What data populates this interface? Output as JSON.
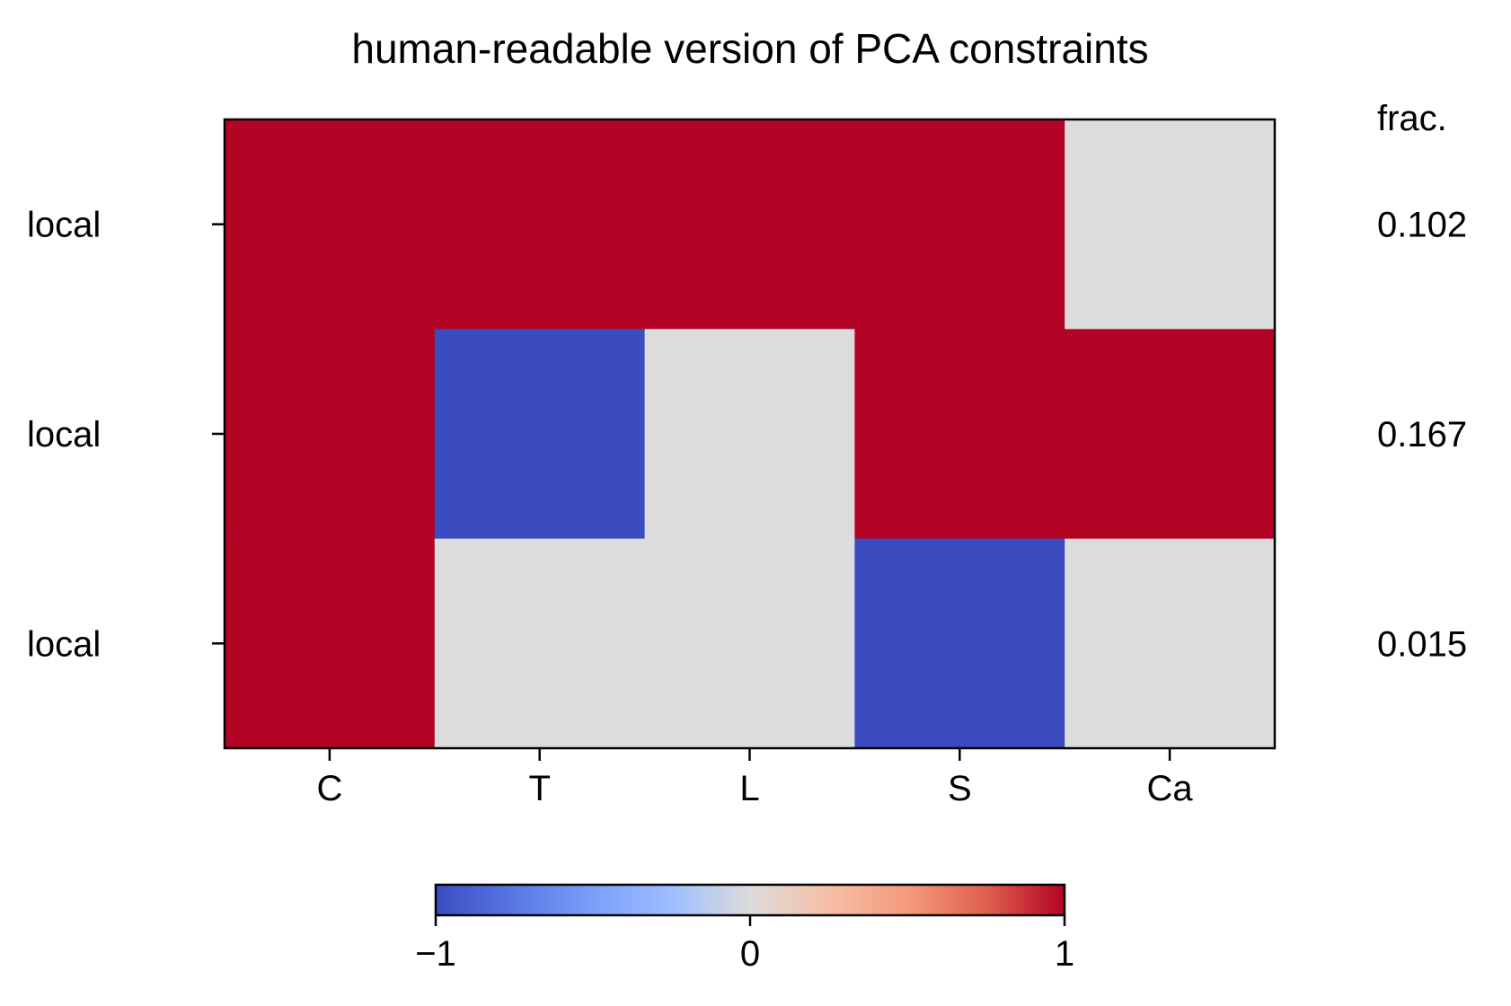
{
  "chart_data": {
    "type": "heatmap",
    "title": "human-readable version of PCA constraints",
    "columns": [
      "C",
      "T",
      "L",
      "S",
      "Ca"
    ],
    "rows": [
      "local",
      "local",
      "local"
    ],
    "values": [
      [
        1,
        1,
        1,
        1,
        0
      ],
      [
        1,
        -1,
        0,
        1,
        1
      ],
      [
        1,
        0,
        0,
        -1,
        0
      ]
    ],
    "right_header": "frac.",
    "right_values": [
      "0.102",
      "0.167",
      "0.015"
    ],
    "colorbar": {
      "colormap": "coolwarm",
      "range": [
        -1,
        1
      ],
      "ticks": [
        -1,
        0,
        1
      ],
      "tick_labels": [
        "−1",
        "0",
        "1"
      ],
      "orientation": "horizontal"
    },
    "colors": {
      "negative": "#3b4cc0",
      "neutral": "#dddcdc",
      "positive": "#b40426"
    }
  }
}
